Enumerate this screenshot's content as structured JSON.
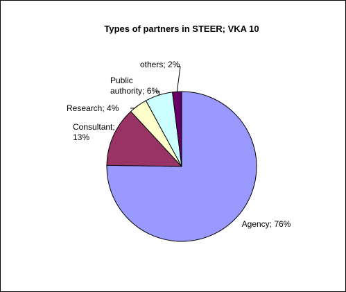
{
  "chart_data": {
    "type": "pie",
    "title": "Types of partners in STEER; VKA 10",
    "categories": [
      "Agency",
      "Consultant",
      "Research",
      "Public authority",
      "others"
    ],
    "values": [
      76,
      13,
      4,
      6,
      2
    ],
    "labels": [
      [
        "Agency; 76%"
      ],
      [
        "Consultant;",
        "13%"
      ],
      [
        "Research; 4%"
      ],
      [
        "Public",
        "authority; 6%"
      ],
      [
        "others; 2%"
      ]
    ],
    "colors": [
      "#9999ff",
      "#993366",
      "#ffffcc",
      "#ccffff",
      "#660066"
    ],
    "legend": "none"
  }
}
